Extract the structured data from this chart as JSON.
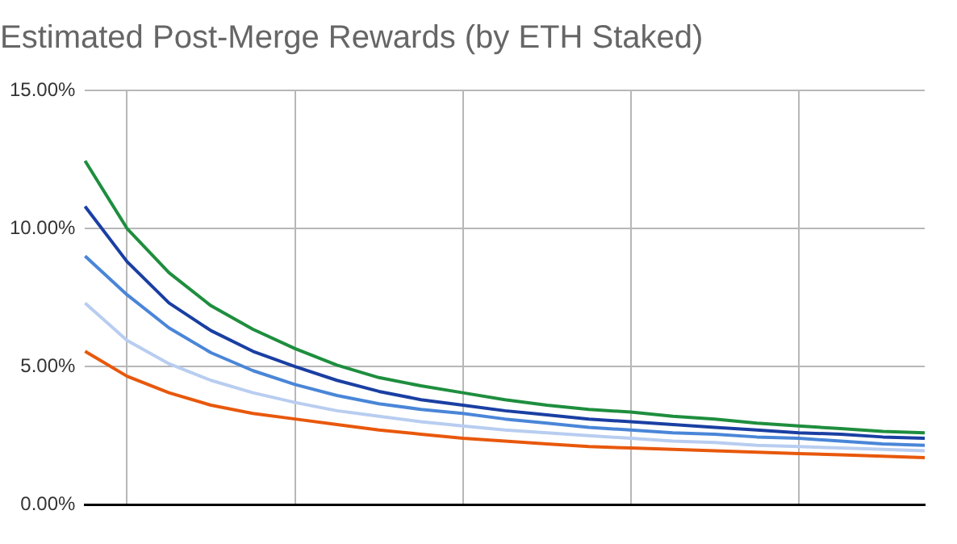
{
  "chart_data": {
    "type": "line",
    "title": "Estimated Post-Merge Rewards (by ETH Staked)",
    "ylim": [
      0,
      15
    ],
    "yticks": [
      {
        "value": 0,
        "label": "0.00%"
      },
      {
        "value": 5,
        "label": "5.00%"
      },
      {
        "value": 10,
        "label": "10.00%"
      },
      {
        "value": 15,
        "label": "15.00%"
      }
    ],
    "categories": [
      null,
      null,
      null,
      null,
      null,
      null,
      null,
      null,
      null,
      null,
      null,
      null,
      null,
      null,
      null,
      null,
      null,
      null,
      null,
      null,
      null
    ],
    "grid": true,
    "marker": "none",
    "line_style": "solid",
    "series": [
      {
        "color": "#1e8e3e",
        "values": [
          12.45,
          10.0,
          8.4,
          7.2,
          6.35,
          5.65,
          5.05,
          4.6,
          4.3,
          4.05,
          3.8,
          3.6,
          3.45,
          3.35,
          3.2,
          3.1,
          2.95,
          2.85,
          2.75,
          2.65,
          2.6
        ]
      },
      {
        "color": "#1a3fa3",
        "values": [
          10.8,
          8.8,
          7.3,
          6.3,
          5.55,
          5.0,
          4.5,
          4.1,
          3.8,
          3.6,
          3.4,
          3.25,
          3.1,
          3.0,
          2.9,
          2.8,
          2.7,
          2.6,
          2.55,
          2.45,
          2.4
        ]
      },
      {
        "color": "#4a86d8",
        "values": [
          9.0,
          7.6,
          6.4,
          5.5,
          4.85,
          4.35,
          3.95,
          3.65,
          3.45,
          3.3,
          3.1,
          2.95,
          2.8,
          2.7,
          2.6,
          2.55,
          2.45,
          2.4,
          2.3,
          2.2,
          2.15
        ]
      },
      {
        "color": "#b8cdf0",
        "values": [
          7.3,
          5.95,
          5.1,
          4.5,
          4.05,
          3.7,
          3.4,
          3.2,
          3.0,
          2.85,
          2.7,
          2.6,
          2.5,
          2.4,
          2.3,
          2.25,
          2.15,
          2.1,
          2.05,
          2.0,
          1.95
        ]
      },
      {
        "color": "#e8580c",
        "values": [
          5.55,
          4.65,
          4.05,
          3.6,
          3.3,
          3.1,
          2.9,
          2.7,
          2.55,
          2.4,
          2.3,
          2.2,
          2.1,
          2.05,
          2.0,
          1.95,
          1.9,
          1.85,
          1.8,
          1.75,
          1.7
        ]
      }
    ]
  }
}
